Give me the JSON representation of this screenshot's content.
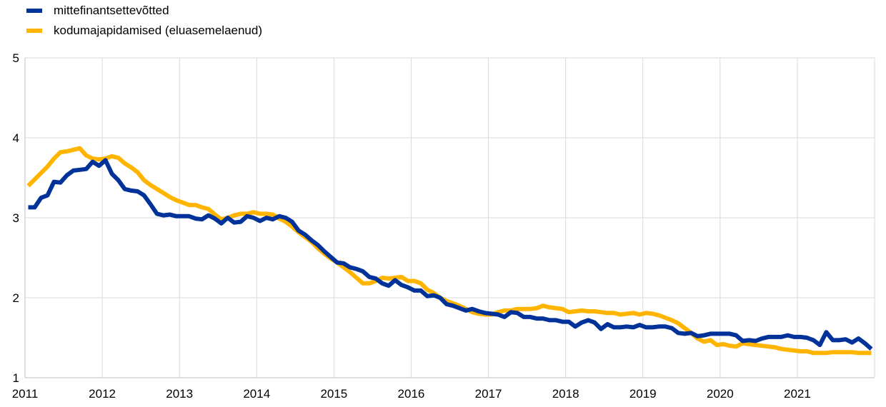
{
  "chart_data": {
    "type": "line",
    "title": "",
    "xlabel": "",
    "ylabel": "",
    "ylim": [
      1,
      5
    ],
    "yticks": [
      "1",
      "2",
      "3",
      "4",
      "5"
    ],
    "xticks": [
      "2011",
      "2012",
      "2013",
      "2014",
      "2015",
      "2016",
      "2017",
      "2018",
      "2019",
      "2020",
      "2021"
    ],
    "xlim": [
      "2011-01",
      "2022-01"
    ],
    "x_frequency": "monthly, 2011-01 to 2021-12",
    "grid": true,
    "legend_position": "top-left",
    "series": [
      {
        "name": "mittefinantsettevõtted",
        "color": "#003299",
        "values": [
          3.13,
          3.13,
          3.25,
          3.28,
          3.45,
          3.44,
          3.53,
          3.59,
          3.6,
          3.61,
          3.7,
          3.65,
          3.72,
          3.55,
          3.47,
          3.36,
          3.34,
          3.33,
          3.28,
          3.17,
          3.05,
          3.03,
          3.04,
          3.02,
          3.02,
          3.02,
          2.99,
          2.98,
          3.03,
          2.99,
          2.93,
          3.0,
          2.94,
          2.95,
          3.02,
          3.0,
          2.96,
          3.0,
          2.98,
          3.02,
          3.0,
          2.95,
          2.84,
          2.79,
          2.72,
          2.66,
          2.58,
          2.51,
          2.44,
          2.43,
          2.38,
          2.36,
          2.33,
          2.26,
          2.24,
          2.18,
          2.15,
          2.22,
          2.16,
          2.13,
          2.09,
          2.09,
          2.02,
          2.03,
          2.0,
          1.92,
          1.9,
          1.87,
          1.84,
          1.86,
          1.83,
          1.81,
          1.8,
          1.79,
          1.76,
          1.82,
          1.81,
          1.76,
          1.76,
          1.74,
          1.74,
          1.72,
          1.72,
          1.7,
          1.7,
          1.64,
          1.69,
          1.72,
          1.69,
          1.61,
          1.67,
          1.63,
          1.63,
          1.64,
          1.63,
          1.66,
          1.63,
          1.63,
          1.64,
          1.64,
          1.62,
          1.56,
          1.55,
          1.56,
          1.52,
          1.53,
          1.55,
          1.55,
          1.55,
          1.55,
          1.53,
          1.46,
          1.47,
          1.46,
          1.49,
          1.51,
          1.51,
          1.51,
          1.53,
          1.51,
          1.51,
          1.5,
          1.47,
          1.41,
          1.57,
          1.47,
          1.47,
          1.48,
          1.44,
          1.49,
          1.43,
          1.36
        ]
      },
      {
        "name": "kodumajapidamised (eluasemelaenud)",
        "color": "#FFB400",
        "values": [
          3.4,
          3.48,
          3.56,
          3.64,
          3.74,
          3.82,
          3.83,
          3.85,
          3.87,
          3.78,
          3.74,
          3.73,
          3.74,
          3.77,
          3.75,
          3.68,
          3.63,
          3.57,
          3.47,
          3.41,
          3.36,
          3.31,
          3.26,
          3.22,
          3.19,
          3.16,
          3.16,
          3.13,
          3.11,
          3.04,
          2.98,
          3.0,
          3.03,
          3.05,
          3.05,
          3.07,
          3.05,
          3.05,
          3.04,
          2.99,
          2.95,
          2.89,
          2.82,
          2.76,
          2.7,
          2.62,
          2.55,
          2.49,
          2.44,
          2.38,
          2.32,
          2.25,
          2.18,
          2.18,
          2.21,
          2.25,
          2.24,
          2.25,
          2.26,
          2.21,
          2.21,
          2.18,
          2.1,
          2.06,
          2.0,
          1.96,
          1.93,
          1.9,
          1.86,
          1.82,
          1.8,
          1.79,
          1.79,
          1.82,
          1.84,
          1.84,
          1.86,
          1.86,
          1.86,
          1.87,
          1.9,
          1.88,
          1.87,
          1.86,
          1.82,
          1.83,
          1.84,
          1.83,
          1.83,
          1.82,
          1.81,
          1.81,
          1.79,
          1.8,
          1.81,
          1.79,
          1.81,
          1.8,
          1.78,
          1.75,
          1.72,
          1.68,
          1.62,
          1.56,
          1.49,
          1.45,
          1.47,
          1.41,
          1.42,
          1.4,
          1.39,
          1.43,
          1.42,
          1.41,
          1.4,
          1.39,
          1.38,
          1.36,
          1.35,
          1.34,
          1.33,
          1.33,
          1.31,
          1.31,
          1.31,
          1.32,
          1.32,
          1.32,
          1.32,
          1.31,
          1.31,
          1.31
        ]
      }
    ]
  }
}
